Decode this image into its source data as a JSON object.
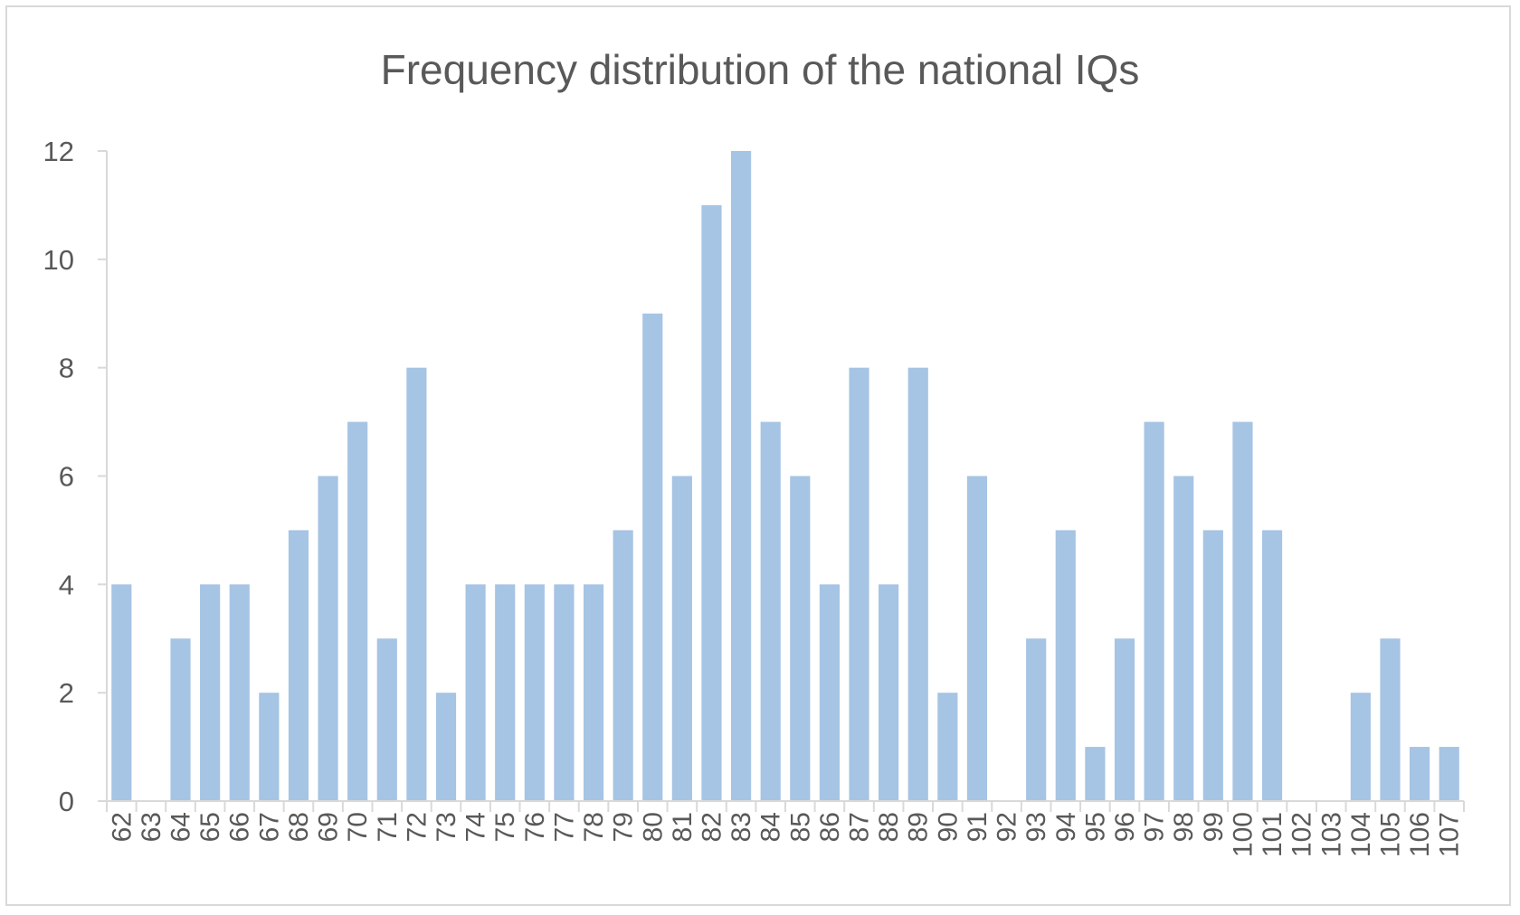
{
  "chart_data": {
    "type": "bar",
    "title": "Frequency distribution of the national IQs",
    "xlabel": "",
    "ylabel": "",
    "ylim": [
      0,
      12
    ],
    "yticks": [
      0,
      2,
      4,
      6,
      8,
      10,
      12
    ],
    "grid": false,
    "legend": "none",
    "bar_color": "#a6c4e4",
    "axis_color": "#d9d9d9",
    "text_color": "#595959",
    "categories": [
      "62",
      "63",
      "64",
      "65",
      "66",
      "67",
      "68",
      "69",
      "70",
      "71",
      "72",
      "73",
      "74",
      "75",
      "76",
      "77",
      "78",
      "79",
      "80",
      "81",
      "82",
      "83",
      "84",
      "85",
      "86",
      "87",
      "88",
      "89",
      "90",
      "91",
      "92",
      "93",
      "94",
      "95",
      "96",
      "97",
      "98",
      "99",
      "100",
      "101",
      "102",
      "103",
      "104",
      "105",
      "106",
      "107"
    ],
    "values": [
      4,
      0,
      3,
      4,
      4,
      2,
      5,
      6,
      7,
      3,
      8,
      2,
      4,
      4,
      4,
      4,
      4,
      5,
      9,
      6,
      11,
      12,
      7,
      6,
      4,
      8,
      4,
      8,
      2,
      6,
      0,
      3,
      5,
      1,
      3,
      7,
      6,
      5,
      7,
      5,
      0,
      0,
      2,
      3,
      1,
      1
    ]
  }
}
